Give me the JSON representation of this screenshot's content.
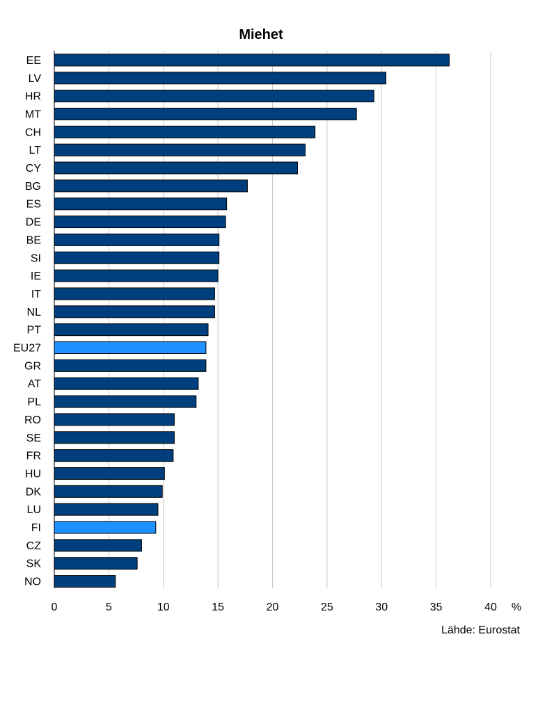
{
  "chart_data": {
    "type": "bar",
    "orientation": "horizontal",
    "title": "Miehet",
    "unit": "%",
    "source": "Lähde: Eurostat",
    "xlim": [
      0,
      40
    ],
    "x_ticks": [
      "0",
      "5",
      "10",
      "15",
      "20",
      "25",
      "30",
      "35",
      "40"
    ],
    "grid": true,
    "categories": [
      "EE",
      "LV",
      "HR",
      "MT",
      "CH",
      "LT",
      "CY",
      "BG",
      "ES",
      "DE",
      "BE",
      "SI",
      "IE",
      "IT",
      "NL",
      "PT",
      "EU27",
      "GR",
      "AT",
      "PL",
      "RO",
      "SE",
      "FR",
      "HU",
      "DK",
      "LU",
      "FI",
      "CZ",
      "SK",
      "NO"
    ],
    "values": [
      36.2,
      30.4,
      29.3,
      27.7,
      23.9,
      23.0,
      22.3,
      17.7,
      15.8,
      15.7,
      15.1,
      15.1,
      15.0,
      14.7,
      14.7,
      14.1,
      13.9,
      13.9,
      13.2,
      13.0,
      11.0,
      11.0,
      10.9,
      10.1,
      9.9,
      9.5,
      9.3,
      8.0,
      7.6,
      5.6
    ],
    "highlight": [
      "EU27",
      "FI"
    ],
    "colors": {
      "default": "#003f7e",
      "highlight": "#1e90ff"
    }
  }
}
